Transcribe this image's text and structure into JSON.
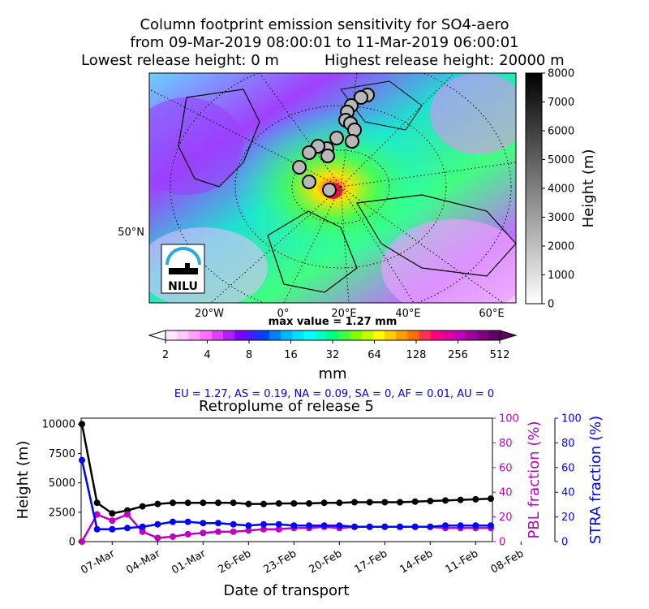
{
  "header": {
    "line1": "Column footprint emission sensitivity for SO4-aero",
    "line2": "from 09-Mar-2019 08:00:01 to 11-Mar-2019 06:00:01",
    "line3_left": "Lowest release height: 0 m",
    "line3_right": "Highest release height: 20000 m"
  },
  "map": {
    "lat_label": "50°N",
    "lon_labels": [
      "20°W",
      "0°",
      "20°E",
      "40°E",
      "60°E"
    ],
    "logo_text": "NILU",
    "max_value_text": "max value = 1.27 mm"
  },
  "height_colorbar": {
    "label": "Height (m)",
    "ticks": [
      "0",
      "1000",
      "2000",
      "3000",
      "4000",
      "5000",
      "6000",
      "7000",
      "8000"
    ]
  },
  "sensitivity_colorbar": {
    "label": "mm",
    "ticks": [
      "2",
      "4",
      "8",
      "16",
      "32",
      "64",
      "128",
      "256",
      "512"
    ]
  },
  "fractions_text": "EU = 1.27,  AS = 0.19,  NA = 0.09,  SA = 0,  AF = 0.01,  AU = 0",
  "chart_data": {
    "type": "line",
    "title": "Retroplume of release 5",
    "xlabel": "Date of transport",
    "ylabel": "Height (m)",
    "ylabel2": "PBL fraction (%)",
    "ylabel3": "STRA fraction (%)",
    "ylim": [
      0,
      10500
    ],
    "ylim2": [
      0,
      100
    ],
    "ylim3": [
      0,
      100
    ],
    "x_tick_labels": [
      "07-Mar",
      "04-Mar",
      "01-Mar",
      "26-Feb",
      "23-Feb",
      "20-Feb",
      "17-Feb",
      "14-Feb",
      "11-Feb",
      "08-Feb"
    ],
    "y_ticks": [
      "0",
      "2500",
      "5000",
      "7500",
      "10000"
    ],
    "y2_ticks": [
      "0",
      "20",
      "40",
      "60",
      "80",
      "100"
    ],
    "y3_ticks": [
      "0",
      "20",
      "40",
      "60",
      "80",
      "100"
    ],
    "series": [
      {
        "axis": "height",
        "color": "#000000",
        "values": [
          10000,
          3300,
          2400,
          2650,
          3000,
          3200,
          3300,
          3300,
          3300,
          3300,
          3300,
          3200,
          3200,
          3250,
          3250,
          3250,
          3300,
          3300,
          3350,
          3350,
          3350,
          3350,
          3400,
          3450,
          3500,
          3550,
          3600,
          3650
        ]
      },
      {
        "axis": "pbl",
        "color": "#c000c0",
        "values": [
          0,
          22,
          17,
          22,
          8,
          3,
          4,
          6,
          7,
          8,
          8,
          9,
          10,
          10,
          11,
          11,
          12,
          11,
          12,
          12,
          12,
          12,
          12,
          12,
          11,
          11,
          11,
          11
        ]
      },
      {
        "axis": "stra",
        "color": "#0000ff",
        "values": [
          66,
          10,
          10,
          11,
          12,
          14,
          16,
          16,
          15,
          15,
          14,
          13,
          14,
          14,
          13,
          13,
          13,
          13,
          12,
          12,
          12,
          12,
          12,
          12,
          13,
          13,
          13,
          13
        ]
      }
    ]
  }
}
